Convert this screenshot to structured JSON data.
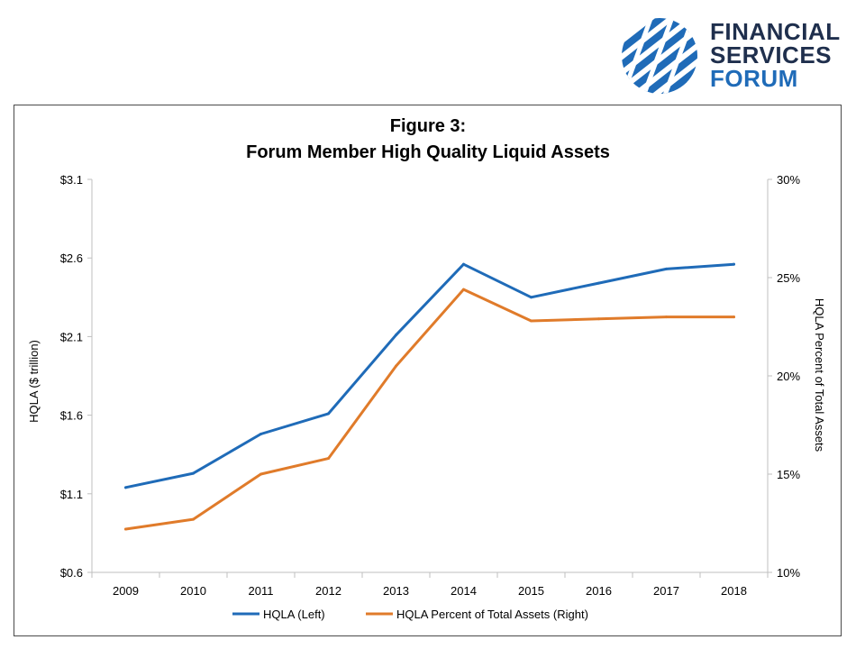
{
  "logo": {
    "line1": "FINANCIAL",
    "line2": "SERVICES",
    "line3": "FORUM"
  },
  "chart_data": {
    "type": "line",
    "title_line1": "Figure 3:",
    "title_line2": "Forum Member High Quality Liquid Assets",
    "categories": [
      "2009",
      "2010",
      "2011",
      "2012",
      "2013",
      "2014",
      "2015",
      "2016",
      "2017",
      "2018"
    ],
    "series": [
      {
        "name": "HQLA (Left)",
        "axis": "left",
        "color": "#1f6bb8",
        "values": [
          1.14,
          1.23,
          1.48,
          1.61,
          2.11,
          2.56,
          2.35,
          2.44,
          2.53,
          2.56
        ]
      },
      {
        "name": "HQLA Percent of Total Assets (Right)",
        "axis": "right",
        "color": "#e07b2a",
        "values": [
          12.2,
          12.7,
          15.0,
          15.8,
          20.5,
          24.4,
          22.8,
          22.9,
          23.0,
          23.0
        ]
      }
    ],
    "left_axis": {
      "label": "HQLA ($ trillion)",
      "min": 0.6,
      "max": 3.1,
      "ticks": [
        "$0.6",
        "$1.1",
        "$1.6",
        "$2.1",
        "$2.6",
        "$3.1"
      ],
      "tick_values": [
        0.6,
        1.1,
        1.6,
        2.1,
        2.6,
        3.1
      ]
    },
    "right_axis": {
      "label": "HQLA Percent of Total Assets",
      "min": 10,
      "max": 30,
      "ticks": [
        "10%",
        "15%",
        "20%",
        "25%",
        "30%"
      ],
      "tick_values": [
        10,
        15,
        20,
        25,
        30
      ]
    },
    "legend_position": "bottom"
  }
}
